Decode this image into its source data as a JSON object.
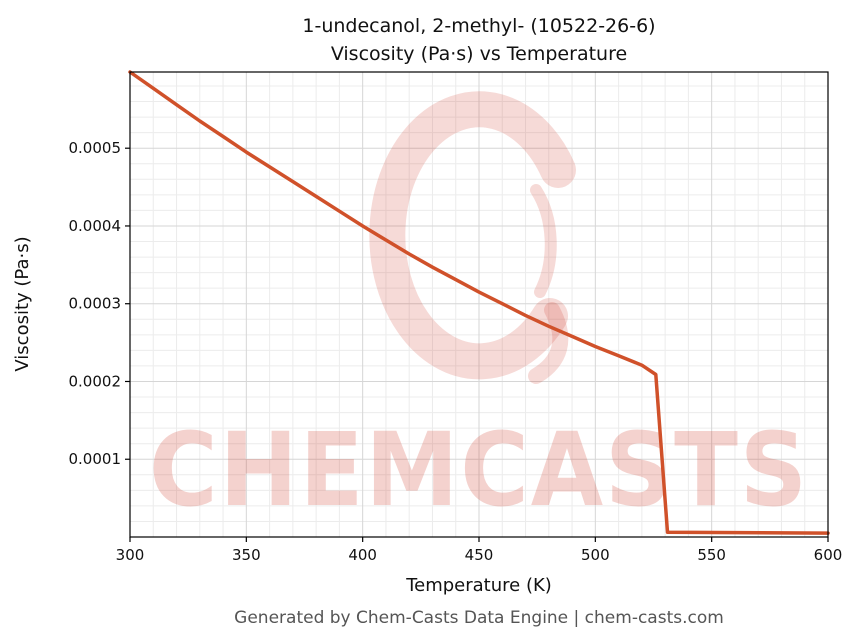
{
  "chart_data": {
    "type": "line",
    "title_line1": "1-undecanol, 2-methyl- (10522-26-6)",
    "title_line2": "Viscosity (Pa·s) vs Temperature",
    "xlabel": "Temperature (K)",
    "ylabel": "Viscosity (Pa·s)",
    "xlim": [
      300,
      600
    ],
    "ylim": [
      0,
      0.000598
    ],
    "xticks": [
      300,
      350,
      400,
      450,
      500,
      550,
      600
    ],
    "xtick_labels": [
      "300",
      "350",
      "400",
      "450",
      "500",
      "550",
      "600"
    ],
    "yticks": [
      0.0001,
      0.0002,
      0.0003,
      0.0004,
      0.0005
    ],
    "ytick_labels": [
      "0.0001",
      "0.0002",
      "0.0003",
      "0.0004",
      "0.0005"
    ],
    "x_minor_step": 10,
    "y_minor_step": 2e-05,
    "grid": true,
    "legend": "none",
    "series": [
      {
        "name": "viscosity",
        "color": "#d0512a",
        "points": [
          [
            300,
            0.000598
          ],
          [
            310,
            0.000577
          ],
          [
            320,
            0.000556
          ],
          [
            330,
            0.000535
          ],
          [
            340,
            0.000515
          ],
          [
            350,
            0.000495
          ],
          [
            360,
            0.000476
          ],
          [
            370,
            0.000457
          ],
          [
            380,
            0.000438
          ],
          [
            390,
            0.000419
          ],
          [
            400,
            0.0004
          ],
          [
            410,
            0.000382
          ],
          [
            420,
            0.000364
          ],
          [
            430,
            0.000347
          ],
          [
            440,
            0.000331
          ],
          [
            450,
            0.000315
          ],
          [
            460,
            0.0003
          ],
          [
            470,
            0.000285
          ],
          [
            480,
            0.000271
          ],
          [
            490,
            0.000258
          ],
          [
            500,
            0.000245
          ],
          [
            510,
            0.000233
          ],
          [
            520,
            0.000221
          ],
          [
            526,
            0.000209
          ],
          [
            531,
            6e-06
          ],
          [
            600,
            5e-06
          ]
        ]
      }
    ]
  },
  "watermark": {
    "text": "CHEMCASTS",
    "color": "#cc3322"
  },
  "footer": {
    "text": "Generated by Chem-Casts Data Engine | chem-casts.com"
  }
}
